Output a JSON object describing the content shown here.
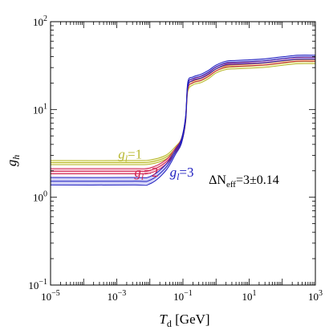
{
  "chart_data": {
    "type": "area",
    "xlabel_symbol": "T",
    "xlabel_sub": "d",
    "xlabel_unit": " [GeV]",
    "ylabel_symbol": "g",
    "ylabel_sub": "h",
    "x_scale": "log",
    "y_scale": "log",
    "xlim": [
      1e-05,
      1000
    ],
    "ylim": [
      0.1,
      100
    ],
    "x_ticks": [
      {
        "value": 1e-05,
        "base": "10",
        "exp": "−5"
      },
      {
        "value": 0.001,
        "base": "10",
        "exp": "−3"
      },
      {
        "value": 0.1,
        "base": "10",
        "exp": "−1"
      },
      {
        "value": 10,
        "base": "10",
        "exp": "1"
      },
      {
        "value": 1000,
        "base": "10",
        "exp": "3"
      }
    ],
    "y_ticks": [
      {
        "value": 0.1,
        "base": "10",
        "exp": "−1"
      },
      {
        "value": 1,
        "base": "10",
        "exp": "0"
      },
      {
        "value": 10,
        "base": "10",
        "exp": "1"
      },
      {
        "value": 100,
        "base": "10",
        "exp": "2"
      }
    ],
    "grid": false,
    "annotation": {
      "prefix": "ΔN",
      "sub": "eff",
      "suffix": "=3±0.14",
      "x": 0.6,
      "y": 1.42
    },
    "series": [
      {
        "label_base": "g",
        "label_sub": "l",
        "label_suffix": "=1",
        "color": "#b8b830",
        "fill": "#f4f4c4",
        "label_x": 0.0011,
        "label_y": 2.75,
        "x": [
          1e-05,
          0.003,
          0.01,
          0.03,
          0.06,
          0.09,
          0.12,
          0.14,
          0.2,
          0.35,
          0.6,
          1,
          2,
          4,
          10,
          30,
          100,
          300,
          1000
        ],
        "lower": [
          2.35,
          2.35,
          2.38,
          2.7,
          3.4,
          4.2,
          7.0,
          16.0,
          19.0,
          20.2,
          22.5,
          26.0,
          28.5,
          29.0,
          29.5,
          30.2,
          31.8,
          33.2,
          33.2
        ],
        "upper": [
          2.62,
          2.62,
          2.66,
          3.0,
          3.8,
          4.7,
          8.0,
          18.5,
          21.0,
          22.5,
          25.0,
          29.0,
          31.5,
          32.2,
          32.8,
          33.8,
          35.5,
          37.0,
          37.0
        ]
      },
      {
        "label_base": "g",
        "label_sub": "l",
        "label_suffix": "=2",
        "color": "#d02050",
        "fill": "#f6c8d4",
        "label_x": 0.0034,
        "label_y": 1.72,
        "x": [
          1e-05,
          0.003,
          0.01,
          0.03,
          0.06,
          0.09,
          0.12,
          0.14,
          0.2,
          0.35,
          0.6,
          1,
          2,
          4,
          10,
          30,
          100,
          300,
          1000
        ],
        "lower": [
          1.85,
          1.85,
          1.88,
          2.35,
          3.25,
          4.15,
          7.2,
          17.0,
          20.2,
          21.5,
          24.0,
          27.5,
          30.5,
          31.0,
          31.5,
          32.2,
          34.0,
          35.5,
          35.5
        ],
        "upper": [
          2.12,
          2.12,
          2.16,
          2.65,
          3.65,
          4.65,
          8.2,
          19.5,
          22.3,
          23.8,
          26.5,
          30.5,
          33.5,
          34.2,
          34.8,
          35.8,
          37.8,
          39.2,
          39.2
        ]
      },
      {
        "label_base": "g",
        "label_sub": "l",
        "label_suffix": "=3",
        "color": "#2020c0",
        "fill": "#c8c8f4",
        "label_x": 0.04,
        "label_y": 1.72,
        "x": [
          1e-05,
          0.003,
          0.01,
          0.03,
          0.06,
          0.09,
          0.12,
          0.14,
          0.2,
          0.35,
          0.6,
          1,
          2,
          4,
          10,
          30,
          100,
          300,
          1000
        ],
        "lower": [
          1.38,
          1.38,
          1.42,
          2.0,
          3.1,
          4.1,
          7.4,
          18.0,
          21.5,
          22.8,
          25.5,
          29.0,
          32.5,
          33.0,
          33.5,
          34.2,
          36.0,
          37.5,
          37.5
        ],
        "upper": [
          1.68,
          1.68,
          1.72,
          2.35,
          3.5,
          4.6,
          8.4,
          20.5,
          23.5,
          25.2,
          28.0,
          32.0,
          35.5,
          36.2,
          36.8,
          37.8,
          39.8,
          41.5,
          41.5
        ]
      }
    ]
  }
}
